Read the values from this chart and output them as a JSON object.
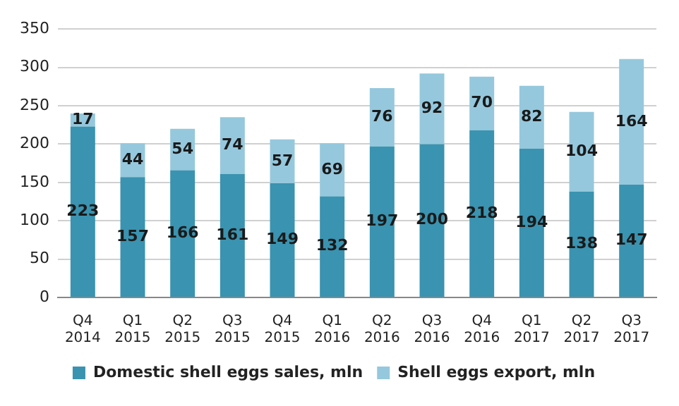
{
  "chart_data": {
    "type": "bar",
    "stacked": true,
    "categories": [
      "Q4 2014",
      "Q1 2015",
      "Q2 2015",
      "Q3 2015",
      "Q4 2015",
      "Q1 2016",
      "Q2 2016",
      "Q3 2016",
      "Q4 2016",
      "Q1 2017",
      "Q2 2017",
      "Q3 2017"
    ],
    "series": [
      {
        "name": "Domestic shell eggs sales, mln",
        "color": "#3a93b0",
        "values": [
          223,
          157,
          166,
          161,
          149,
          132,
          197,
          200,
          218,
          194,
          138,
          147
        ]
      },
      {
        "name": "Shell eggs export, mln",
        "color": "#95c8dd",
        "values": [
          17,
          44,
          54,
          74,
          57,
          69,
          76,
          92,
          70,
          82,
          104,
          164
        ]
      }
    ],
    "ylim": [
      0,
      350
    ],
    "yticks": [
      0,
      50,
      100,
      150,
      200,
      250,
      300,
      350
    ],
    "grid": "y",
    "legend": "bottom",
    "data_labels": true
  }
}
